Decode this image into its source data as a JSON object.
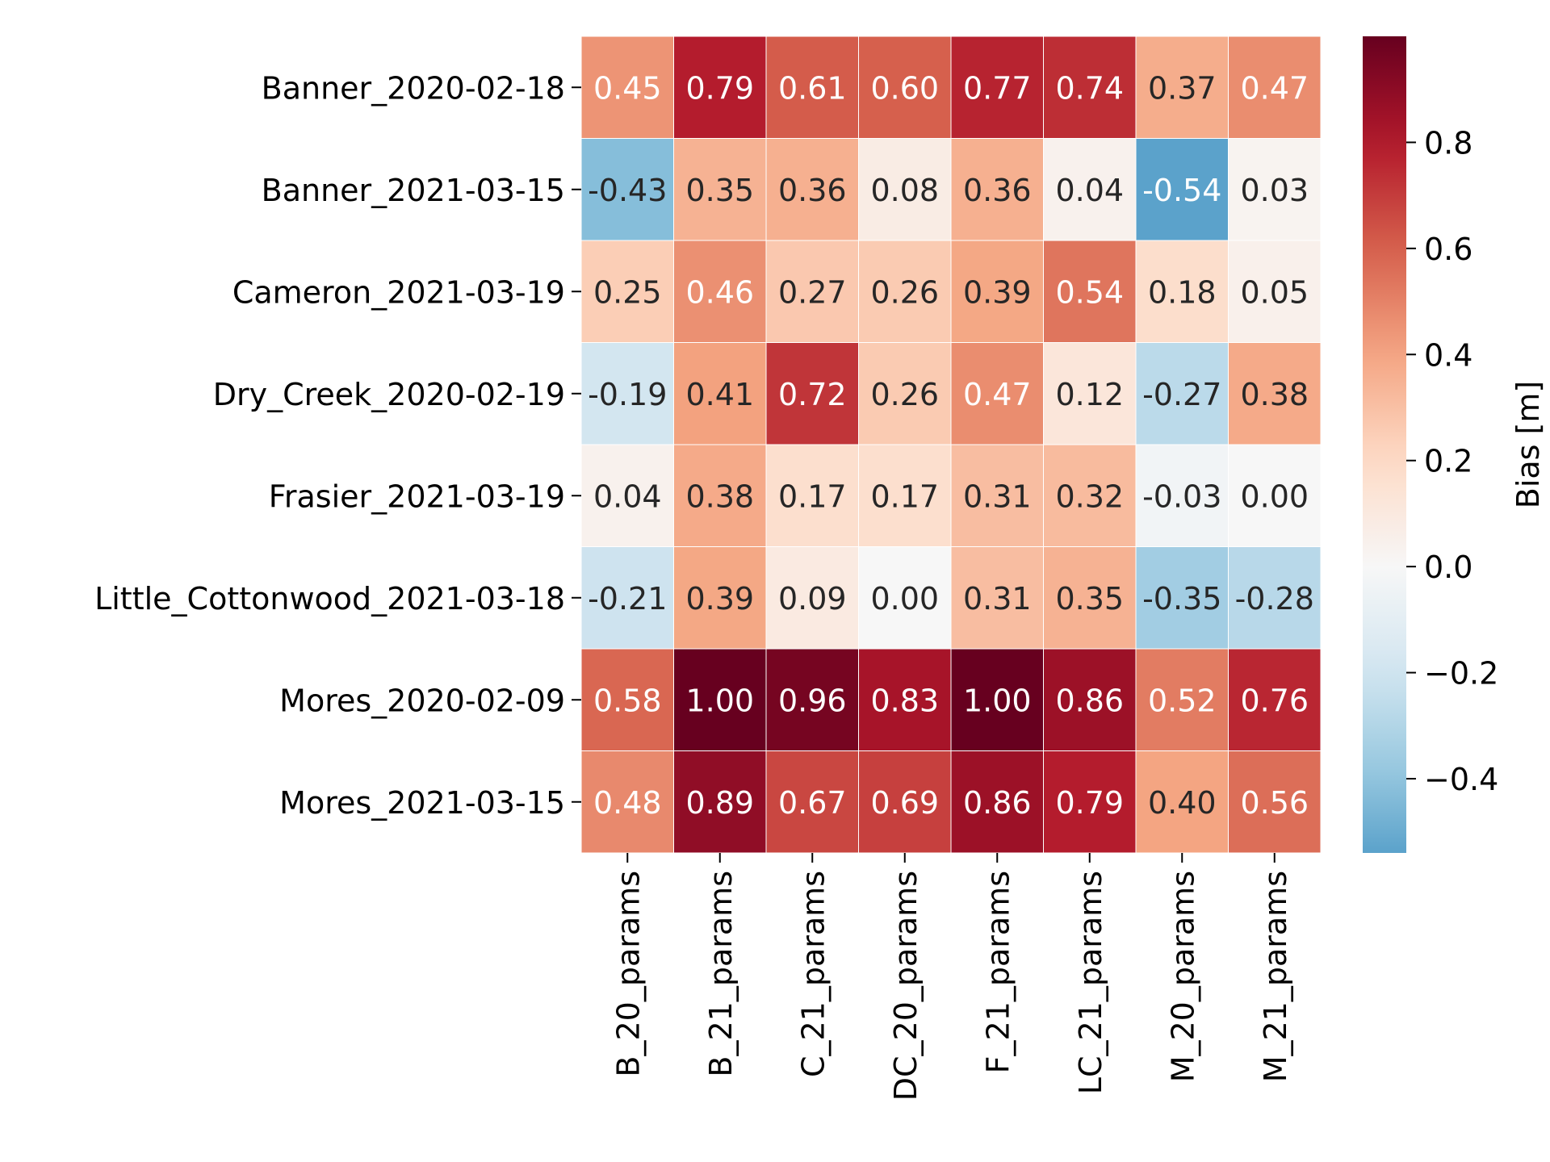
{
  "chart_data": {
    "type": "heatmap",
    "title": "",
    "xlabel": "",
    "ylabel": "",
    "rows": [
      "Banner_2020-02-18",
      "Banner_2021-03-15",
      "Cameron_2021-03-19",
      "Dry_Creek_2020-02-19",
      "Frasier_2021-03-19",
      "Little_Cottonwood_2021-03-18",
      "Mores_2020-02-09",
      "Mores_2021-03-15"
    ],
    "columns": [
      "B_20_params",
      "B_21_params",
      "C_21_params",
      "DC_20_params",
      "F_21_params",
      "LC_21_params",
      "M_20_params",
      "M_21_params"
    ],
    "values": [
      [
        0.45,
        0.79,
        0.61,
        0.6,
        0.77,
        0.74,
        0.37,
        0.47
      ],
      [
        -0.43,
        0.35,
        0.36,
        0.08,
        0.36,
        0.04,
        -0.54,
        0.03
      ],
      [
        0.25,
        0.46,
        0.27,
        0.26,
        0.39,
        0.54,
        0.18,
        0.05
      ],
      [
        -0.19,
        0.41,
        0.72,
        0.26,
        0.47,
        0.12,
        -0.27,
        0.38
      ],
      [
        0.04,
        0.38,
        0.17,
        0.17,
        0.31,
        0.32,
        -0.03,
        -0.0
      ],
      [
        -0.21,
        0.39,
        0.09,
        0.0,
        0.31,
        0.35,
        -0.35,
        -0.28
      ],
      [
        0.58,
        1.0,
        0.96,
        0.83,
        1.0,
        0.86,
        0.52,
        0.76
      ],
      [
        0.48,
        0.89,
        0.67,
        0.69,
        0.86,
        0.79,
        0.4,
        0.56
      ]
    ],
    "value_format": "2 decimals",
    "colormap": "RdBu_r",
    "color_range": [
      -1.0,
      1.0
    ],
    "colorbar": {
      "label": "Bias [m]",
      "range": [
        -0.54,
        1.0
      ],
      "ticks": [
        0.8,
        0.6,
        0.4,
        0.2,
        0.0,
        -0.2,
        -0.4
      ],
      "tick_labels": [
        "0.8",
        "0.6",
        "0.4",
        "0.2",
        "0.0",
        "−0.2",
        "−0.4"
      ],
      "placement": "right"
    },
    "cell_border_color": "#ffffff",
    "text_color_dark": "#262626",
    "text_color_light": "#ffffff"
  }
}
